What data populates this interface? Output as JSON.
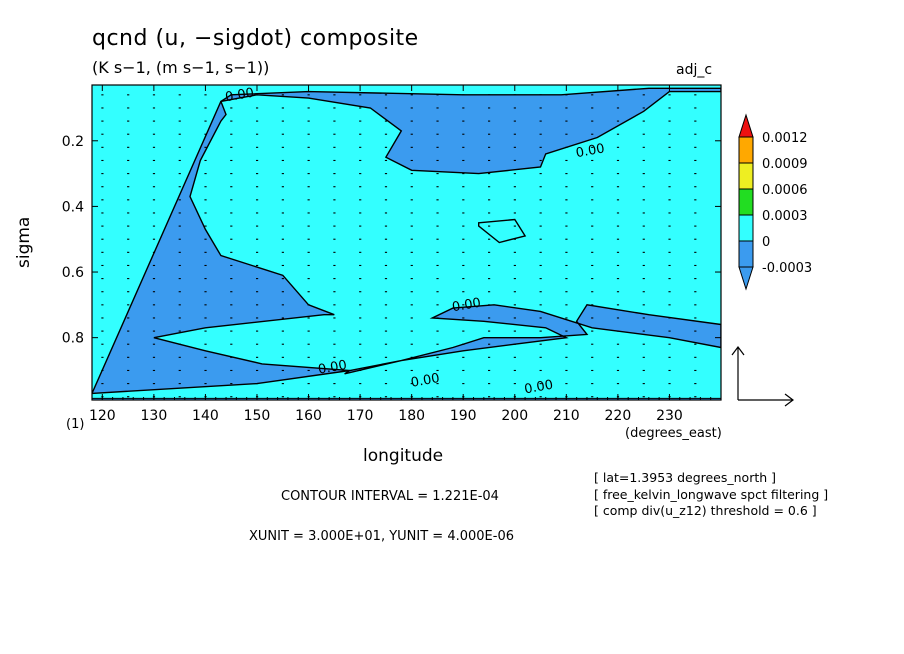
{
  "title": "qcnd (u, −sigdot) composite",
  "subtitle": "(K s−1, (m s−1, s−1))",
  "tag": "adj_c",
  "index_label": "(1)",
  "info_lines": [
    "[ lat=1.3953 degrees_north ]",
    "[ free_kelvin_longwave spct filtering ]",
    "[ comp div(u_z12) threshold = 0.6 ]"
  ],
  "contour_interval": "CONTOUR INTERVAL = 1.221E-04",
  "units_line": "XUNIT = 3.000E+01, YUNIT = 4.000E-06",
  "colors": {
    "negative": "#3b9bef",
    "positive_low": "#33ffff",
    "level_3": "#22dd22",
    "level_4": "#eeee22",
    "level_5": "#ffa800",
    "level_6": "#ee1111"
  },
  "chart_data": {
    "type": "heatmap",
    "xlabel": "longitude",
    "x_unit": "(degrees_east)",
    "ylabel": "sigma",
    "xlim": [
      118,
      240
    ],
    "ylim": [
      0.99,
      0.03
    ],
    "xticks": [
      120,
      130,
      140,
      150,
      160,
      170,
      180,
      190,
      200,
      210,
      220,
      230
    ],
    "yticks": [
      0.2,
      0.4,
      0.6,
      0.8
    ],
    "contour_label": "0.00",
    "contour_labels": [
      {
        "text": "0.00",
        "x": 144,
        "y": 0.08
      },
      {
        "text": "0.00",
        "x": 212,
        "y": 0.25
      },
      {
        "text": "0.00",
        "x": 188,
        "y": 0.72
      },
      {
        "text": "0.00",
        "x": 162,
        "y": 0.91
      },
      {
        "text": "0.00",
        "x": 180,
        "y": 0.95
      },
      {
        "text": "0.00",
        "x": 202,
        "y": 0.97
      }
    ],
    "colorbar": {
      "levels": [
        "0.0012",
        "0.0009",
        "0.0006",
        "0.0003",
        "0",
        "-0.0003"
      ],
      "colors": [
        "#ee1111",
        "#ffa800",
        "#eeee22",
        "#22dd22",
        "#33ffff",
        "#3b9bef",
        "#3b9bef"
      ]
    },
    "regions": [
      {
        "value": "negative",
        "boundary": [
          [
            118,
            0.97
          ],
          [
            150,
            0.94
          ],
          [
            168,
            0.9
          ],
          [
            178,
            0.87
          ],
          [
            188,
            0.83
          ],
          [
            194,
            0.8
          ],
          [
            205,
            0.8
          ],
          [
            214,
            0.79
          ],
          [
            212,
            0.75
          ],
          [
            214,
            0.7
          ],
          [
            226,
            0.73
          ],
          [
            240,
            0.76
          ],
          [
            240,
            0.83
          ],
          [
            230,
            0.8
          ],
          [
            215,
            0.77
          ],
          [
            205,
            0.72
          ],
          [
            196,
            0.7
          ],
          [
            188,
            0.71
          ],
          [
            184,
            0.74
          ],
          [
            194,
            0.75
          ],
          [
            206,
            0.77
          ],
          [
            210,
            0.8
          ],
          [
            200,
            0.82
          ],
          [
            190,
            0.84
          ],
          [
            178,
            0.87
          ],
          [
            167,
            0.91
          ],
          [
            168,
            0.9
          ],
          [
            151,
            0.88
          ],
          [
            140,
            0.84
          ],
          [
            130,
            0.8
          ],
          [
            140,
            0.77
          ],
          [
            163,
            0.73
          ],
          [
            165,
            0.73
          ],
          [
            160,
            0.7
          ],
          [
            155,
            0.61
          ],
          [
            143,
            0.55
          ],
          [
            140,
            0.47
          ],
          [
            137,
            0.37
          ],
          [
            139,
            0.26
          ],
          [
            143,
            0.14
          ],
          [
            144,
            0.12
          ],
          [
            143,
            0.08
          ],
          [
            145,
            0.06
          ],
          [
            160,
            0.05
          ],
          [
            190,
            0.06
          ],
          [
            209,
            0.06
          ],
          [
            226,
            0.04
          ],
          [
            240,
            0.04
          ],
          [
            240,
            0.05
          ],
          [
            230,
            0.05
          ],
          [
            225,
            0.11
          ],
          [
            216,
            0.19
          ],
          [
            206,
            0.24
          ],
          [
            205,
            0.28
          ],
          [
            193,
            0.3
          ],
          [
            180,
            0.29
          ],
          [
            175,
            0.25
          ],
          [
            178,
            0.17
          ],
          [
            172,
            0.1
          ],
          [
            160,
            0.07
          ],
          [
            150,
            0.06
          ],
          [
            143,
            0.08
          ]
        ]
      },
      {
        "value": "positive_low",
        "boundary": [
          [
            193,
            0.45
          ],
          [
            200,
            0.44
          ],
          [
            202,
            0.49
          ],
          [
            197,
            0.51
          ],
          [
            193,
            0.46
          ]
        ]
      }
    ],
    "vector_field": {
      "dx": 10,
      "dsigma": 0.04,
      "description": "small arrows"
    }
  },
  "reference_vector": {
    "u": 30,
    "sigdot": "4.000E-06"
  }
}
